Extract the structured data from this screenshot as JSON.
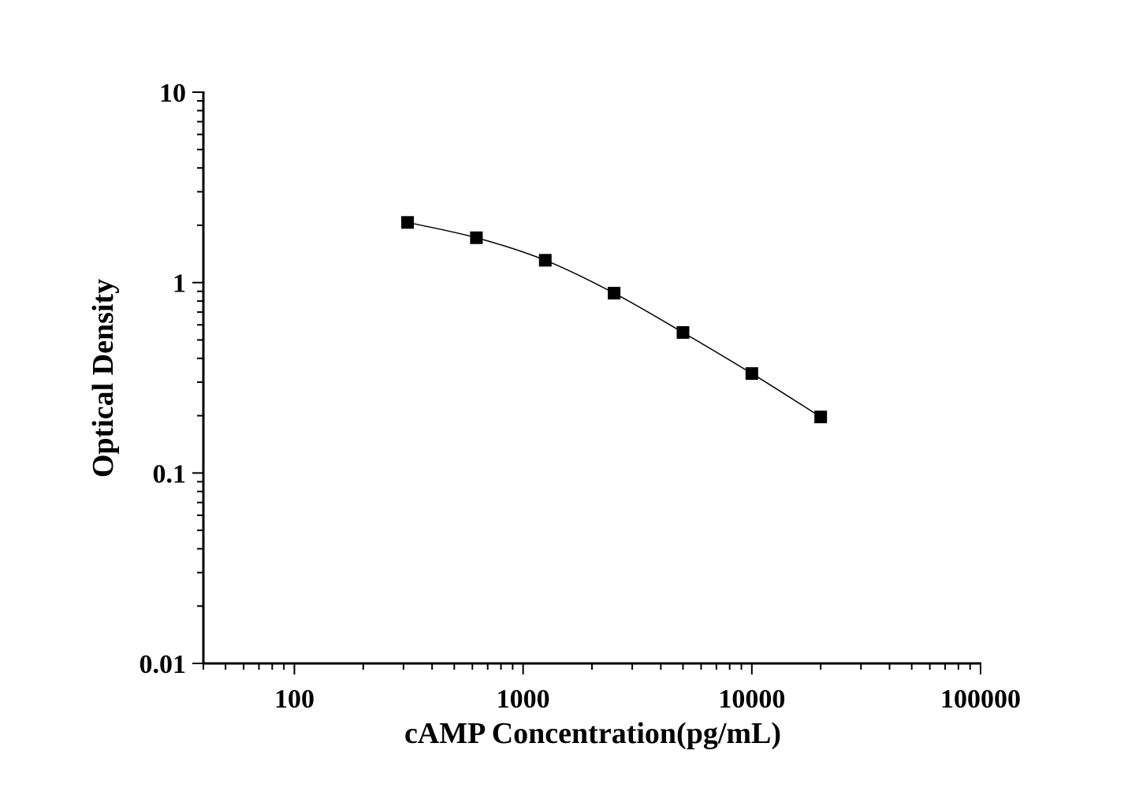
{
  "chart_data": {
    "type": "scatter",
    "title": "",
    "xlabel": "cAMP Concentration(pg/mL)",
    "ylabel": "Optical Density",
    "x_scale": "log",
    "y_scale": "log",
    "xlim": [
      40,
      100000
    ],
    "ylim": [
      0.01,
      10
    ],
    "x_ticks": [
      "100",
      "1000",
      "10000",
      "100000"
    ],
    "y_ticks": [
      "0.01",
      "0.1",
      "1",
      "10"
    ],
    "grid": false,
    "marker": "square",
    "connected_by_smooth_line": true,
    "color": "#000000",
    "series": [
      {
        "x": [
          312.5,
          625,
          1250,
          2500,
          5000,
          10000,
          20000
        ],
        "y": [
          2.07,
          1.72,
          1.31,
          0.88,
          0.547,
          0.333,
          0.197
        ]
      }
    ]
  }
}
